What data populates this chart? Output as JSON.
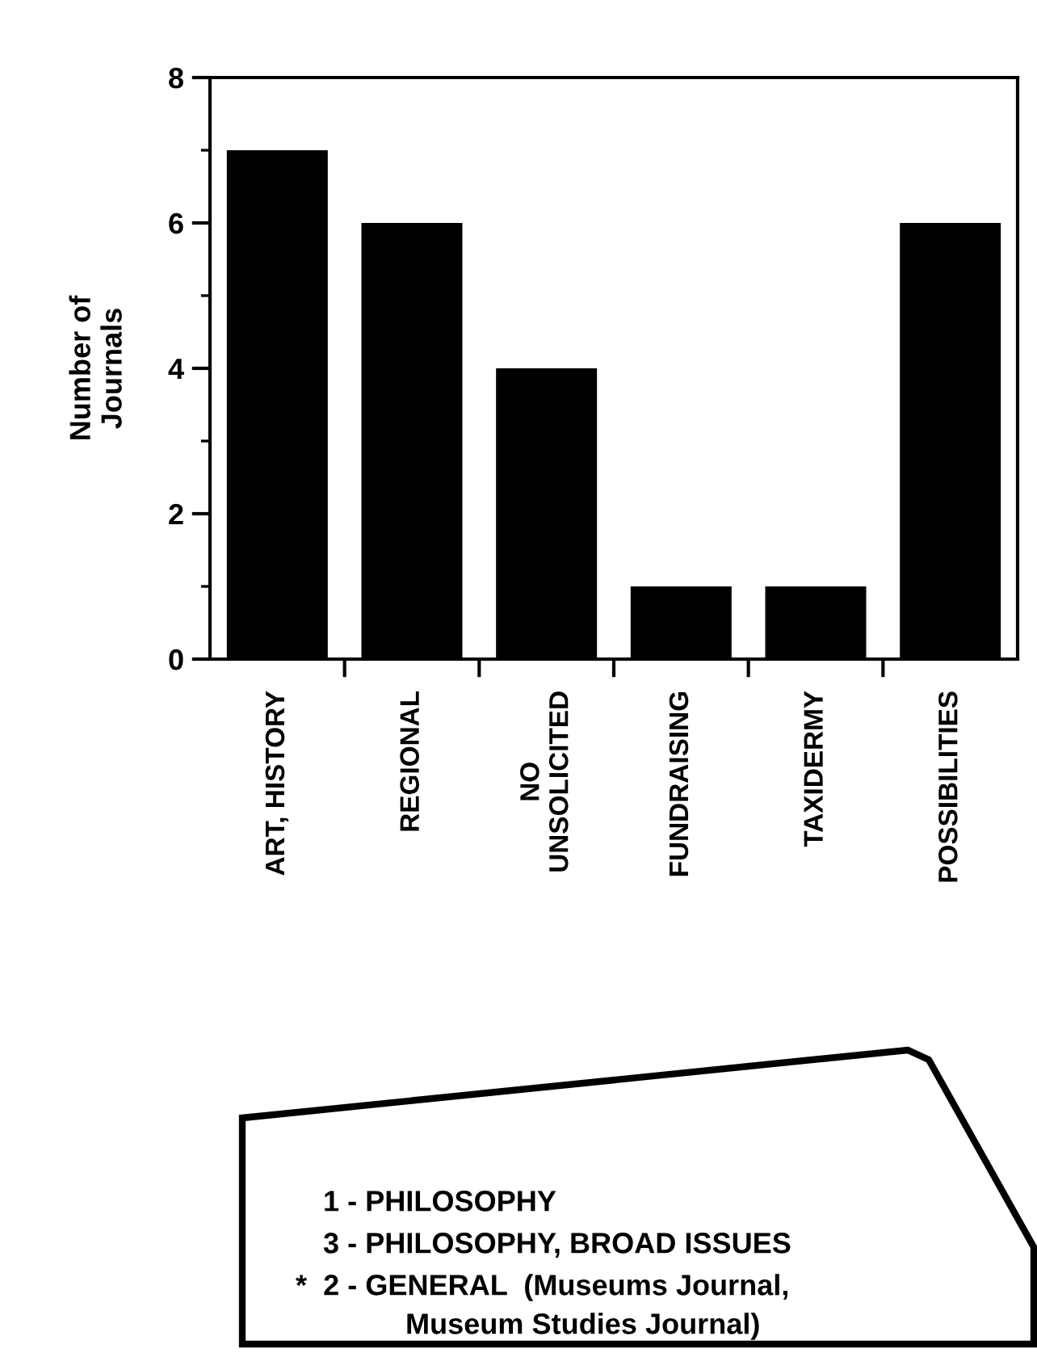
{
  "chart_data": {
    "type": "bar",
    "ylabel": "Number of\nJournals",
    "categories": [
      "ART, HISTORY",
      "REGIONAL",
      "NO\nUNSOLICITED",
      "FUNDRAISING",
      "TAXIDERMY",
      "POSSIBILITIES"
    ],
    "values": [
      7,
      6,
      4,
      1,
      1,
      6
    ],
    "color": "#000000",
    "ylim": [
      0,
      8
    ],
    "yticks": [
      0,
      {
        "value": 1,
        "label": null
      },
      2,
      {
        "value": 3,
        "label": null
      },
      4,
      {
        "value": 5,
        "label": null
      },
      6,
      {
        "value": 7,
        "label": null
      },
      8
    ],
    "grid": false,
    "annotations": [
      "1 - PHILOSOPHY",
      "3 - PHILOSOPHY, BROAD ISSUES",
      "*  2 - GENERAL  (Museums Journal,",
      "Museum Studies Journal)"
    ]
  }
}
